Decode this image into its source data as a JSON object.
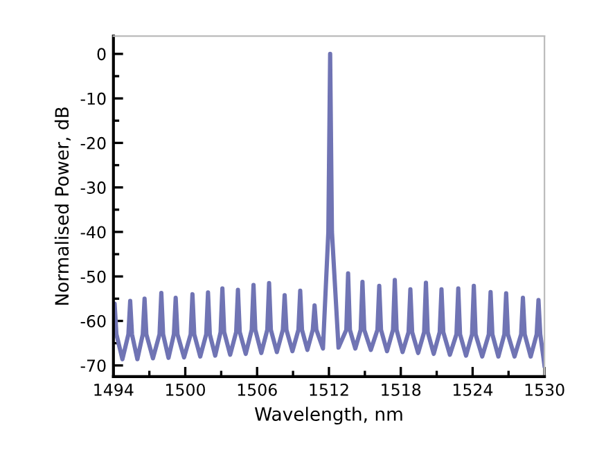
{
  "chart_data": {
    "type": "line",
    "xlabel": "Wavelength, nm",
    "ylabel": "Normalised Power, dB",
    "xlim": [
      1494,
      1530
    ],
    "ylim": [
      -72.5,
      4
    ],
    "xticks": [
      1494,
      {
        "value": 1497,
        "label": null
      },
      1500,
      {
        "value": 1503,
        "label": null
      },
      1506,
      {
        "value": 1509,
        "label": null
      },
      1512,
      {
        "value": 1515,
        "label": null
      },
      1518,
      {
        "value": 1521,
        "label": null
      },
      1524,
      {
        "value": 1527,
        "label": null
      },
      1530
    ],
    "yticks": [
      -70,
      {
        "value": -65,
        "label": null
      },
      -60,
      {
        "value": -55,
        "label": null
      },
      -50,
      {
        "value": -45,
        "label": null
      },
      -40,
      {
        "value": -35,
        "label": null
      },
      -30,
      {
        "value": -25,
        "label": null
      },
      -20,
      {
        "value": -15,
        "label": null
      },
      -10,
      {
        "value": -5,
        "label": null
      },
      0
    ],
    "grid": false,
    "legend": false,
    "series": [
      {
        "color": "#7074b4",
        "x": [
          1494.0,
          1494.1,
          1494.25,
          1494.75,
          1495.25,
          1495.4,
          1495.55,
          1496.0,
          1496.45,
          1496.6,
          1496.75,
          1497.3,
          1497.85,
          1498.0,
          1498.15,
          1498.6,
          1499.05,
          1499.2,
          1499.35,
          1499.9,
          1500.45,
          1500.6,
          1500.75,
          1501.25,
          1501.75,
          1501.9,
          1502.05,
          1502.5,
          1502.95,
          1503.1,
          1503.25,
          1503.75,
          1504.25,
          1504.4,
          1504.55,
          1505.05,
          1505.55,
          1505.7,
          1505.85,
          1506.35,
          1506.85,
          1507.0,
          1507.15,
          1507.65,
          1508.15,
          1508.3,
          1508.45,
          1508.95,
          1509.45,
          1509.6,
          1509.75,
          1510.2,
          1510.65,
          1510.8,
          1510.95,
          1511.5,
          1511.95,
          1512.1,
          1512.25,
          1512.8,
          1513.45,
          1513.6,
          1513.75,
          1514.2,
          1514.65,
          1514.8,
          1514.95,
          1515.5,
          1516.05,
          1516.2,
          1516.35,
          1516.85,
          1517.35,
          1517.5,
          1517.65,
          1518.15,
          1518.65,
          1518.8,
          1518.95,
          1519.45,
          1519.95,
          1520.1,
          1520.25,
          1520.75,
          1521.25,
          1521.4,
          1521.55,
          1522.1,
          1522.65,
          1522.8,
          1522.95,
          1523.45,
          1523.95,
          1524.1,
          1524.25,
          1524.8,
          1525.35,
          1525.5,
          1525.65,
          1526.15,
          1526.65,
          1526.8,
          1526.95,
          1527.5,
          1528.05,
          1528.2,
          1528.35,
          1528.85,
          1529.35,
          1529.5,
          1529.65,
          1530.0
        ],
        "values": [
          -60,
          -56.1,
          -63,
          -68.6,
          -63,
          -55.5,
          -63,
          -68.6,
          -63,
          -55.0,
          -63,
          -68.4,
          -63,
          -53.7,
          -63,
          -68.3,
          -63,
          -54.8,
          -63,
          -68.2,
          -63,
          -54.0,
          -63,
          -68.0,
          -63,
          -53.6,
          -63,
          -67.8,
          -62.5,
          -52.7,
          -62.5,
          -67.6,
          -62.5,
          -53.0,
          -62.5,
          -67.4,
          -62,
          -51.9,
          -62,
          -67.2,
          -62,
          -51.5,
          -62,
          -67.0,
          -62,
          -54.2,
          -62,
          -66.8,
          -62,
          -53.2,
          -62,
          -66.5,
          -62,
          -56.5,
          -62,
          -66.2,
          -40,
          0,
          -40,
          -66.0,
          -62,
          -49.3,
          -62,
          -66.2,
          -62,
          -51.2,
          -62,
          -66.5,
          -62,
          -52.1,
          -62,
          -66.8,
          -62,
          -50.8,
          -62,
          -67.0,
          -62.5,
          -52.9,
          -62.5,
          -67.2,
          -62.5,
          -51.4,
          -62.5,
          -67.4,
          -62.5,
          -52.9,
          -62.5,
          -67.6,
          -63,
          -52.7,
          -63,
          -67.8,
          -63,
          -52.1,
          -63,
          -68.0,
          -63,
          -53.5,
          -63,
          -68.0,
          -63,
          -53.8,
          -63,
          -68.0,
          -63,
          -54.8,
          -63,
          -68.0,
          -63,
          -55.3,
          -63,
          -70.0
        ]
      }
    ]
  }
}
